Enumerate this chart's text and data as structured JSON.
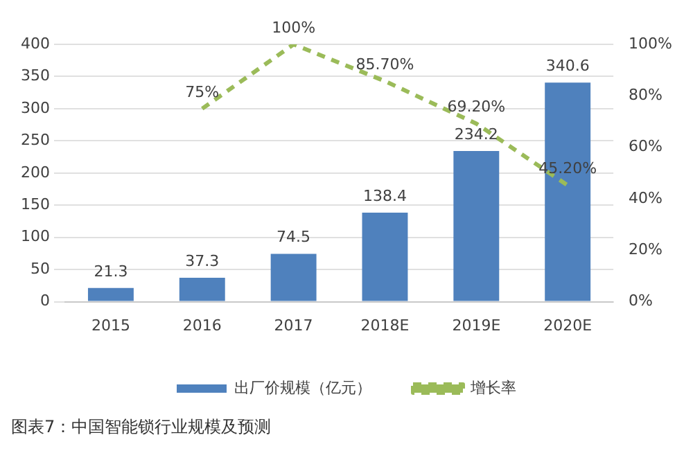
{
  "chart_data": {
    "type": "bar",
    "categories": [
      "2015",
      "2016",
      "2017",
      "2018E",
      "2019E",
      "2020E"
    ],
    "series": [
      {
        "name": "出厂价规模（亿元）",
        "color": "#4f81bd",
        "values": [
          21.3,
          37.3,
          74.5,
          138.4,
          234.2,
          340.6
        ]
      },
      {
        "name": "增长率",
        "type": "line",
        "axis": "y2",
        "color": "#9bbb59",
        "line_style": "dashed",
        "marker": "none",
        "values": [
          null,
          75,
          100,
          85.7,
          69.2,
          45.2
        ],
        "value_labels": [
          null,
          "75%",
          "100%",
          "85.70%",
          "69.20%",
          "45.20%"
        ]
      }
    ],
    "data_labels": true,
    "ylim": [
      0,
      400
    ],
    "yticks": [
      0,
      50,
      100,
      150,
      200,
      250,
      300,
      350,
      400
    ],
    "y2lim": [
      0,
      100
    ],
    "y2ticks": [
      {
        "value": 0,
        "label": "0%"
      },
      {
        "value": 20,
        "label": "20%"
      },
      {
        "value": 40,
        "label": "40%"
      },
      {
        "value": 60,
        "label": "60%"
      },
      {
        "value": 80,
        "label": "80%"
      },
      {
        "value": 100,
        "label": "100%"
      }
    ],
    "grid": "y",
    "legend": "bottom",
    "annotations": [
      "图表7：中国智能锁行业规模及预测"
    ]
  }
}
